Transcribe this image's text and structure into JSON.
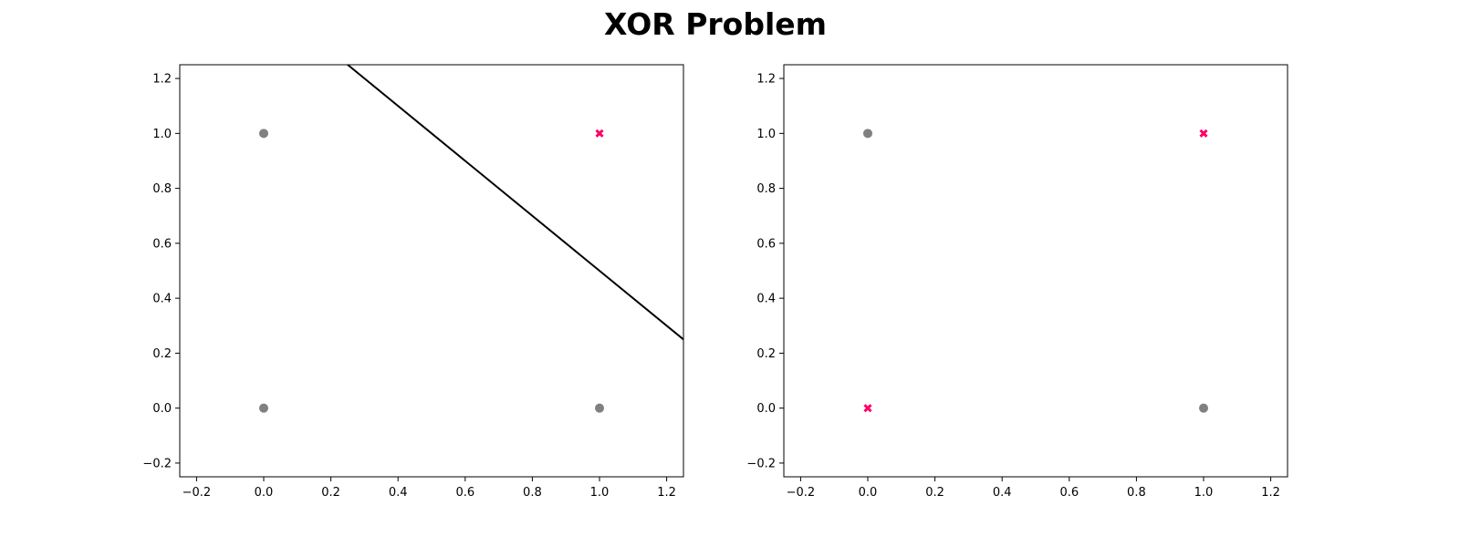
{
  "figure": {
    "title": "XOR Problem"
  },
  "chart_data": [
    {
      "type": "scatter",
      "title": "",
      "xlabel": "",
      "ylabel": "",
      "xlim": [
        -0.25,
        1.25
      ],
      "ylim": [
        -0.25,
        1.25
      ],
      "xticks": [
        "−0.2",
        "0.0",
        "0.2",
        "0.4",
        "0.6",
        "0.8",
        "1.0",
        "1.2"
      ],
      "yticks": [
        "−0.2",
        "0.0",
        "0.2",
        "0.4",
        "0.6",
        "0.8",
        "1.0",
        "1.2"
      ],
      "grid": false,
      "series": [
        {
          "marker": "circle",
          "color": "#808080",
          "points": [
            [
              0,
              0
            ],
            [
              0,
              1
            ],
            [
              1,
              0
            ]
          ]
        },
        {
          "marker": "x",
          "color": "#ff0066",
          "points": [
            [
              1,
              1
            ]
          ]
        }
      ],
      "lines": [
        {
          "color": "#000000",
          "points": [
            [
              0.25,
              1.25
            ],
            [
              1.25,
              0.25
            ]
          ]
        }
      ]
    },
    {
      "type": "scatter",
      "title": "",
      "xlabel": "",
      "ylabel": "",
      "xlim": [
        -0.25,
        1.25
      ],
      "ylim": [
        -0.25,
        1.25
      ],
      "xticks": [
        "−0.2",
        "0.0",
        "0.2",
        "0.4",
        "0.6",
        "0.8",
        "1.0",
        "1.2"
      ],
      "yticks": [
        "−0.2",
        "0.0",
        "0.2",
        "0.4",
        "0.6",
        "0.8",
        "1.0",
        "1.2"
      ],
      "grid": false,
      "series": [
        {
          "marker": "circle",
          "color": "#808080",
          "points": [
            [
              0,
              1
            ],
            [
              1,
              0
            ]
          ]
        },
        {
          "marker": "x",
          "color": "#ff0066",
          "points": [
            [
              0,
              0
            ],
            [
              1,
              1
            ]
          ]
        }
      ],
      "lines": []
    }
  ]
}
